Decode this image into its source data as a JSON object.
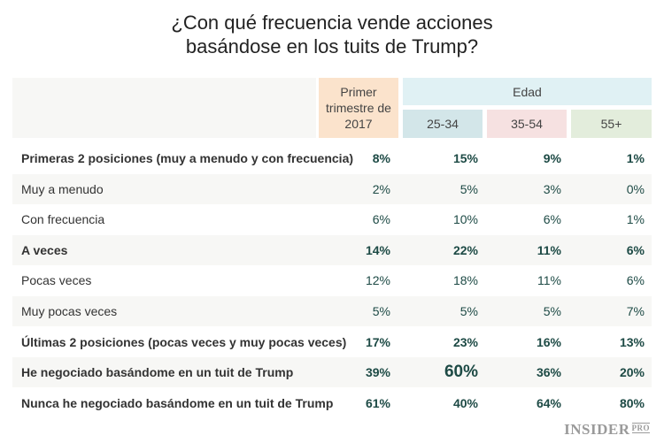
{
  "chart_data": {
    "type": "table",
    "title_line1": "¿Con qué frecuencia vende acciones",
    "title_line2": "basándose en los tuits de Trump?",
    "columns": {
      "total": "Primer trimestre de 2017",
      "group": "Edad",
      "ages": [
        "25-34",
        "35-54",
        "55+"
      ]
    },
    "colors": {
      "total": "#fbe3cc",
      "group": "#e0f1f4",
      "ages": [
        "#d3e6e9",
        "#f6e1e1",
        "#e3eddc"
      ],
      "value": "#1d4a45"
    },
    "rows": [
      {
        "label": "Primeras 2 posiciones (muy a menudo y con frecuencia)",
        "bold": true,
        "values": [
          "8%",
          "15%",
          "9%",
          "1%"
        ]
      },
      {
        "label": "Muy a menudo",
        "bold": false,
        "values": [
          "2%",
          "5%",
          "3%",
          "0%"
        ]
      },
      {
        "label": "Con frecuencia",
        "bold": false,
        "values": [
          "6%",
          "10%",
          "6%",
          "1%"
        ]
      },
      {
        "label": "A veces",
        "bold": true,
        "values": [
          "14%",
          "22%",
          "11%",
          "6%"
        ]
      },
      {
        "label": "Pocas veces",
        "bold": false,
        "values": [
          "12%",
          "18%",
          "11%",
          "6%"
        ]
      },
      {
        "label": "Muy pocas veces",
        "bold": false,
        "values": [
          "5%",
          "5%",
          "5%",
          "7%"
        ]
      },
      {
        "label": "Últimas 2 posiciones (pocas veces y muy pocas veces)",
        "bold": true,
        "values": [
          "17%",
          "23%",
          "16%",
          "13%"
        ]
      },
      {
        "label": "He negociado basándome en un tuit de Trump",
        "bold": true,
        "values": [
          "39%",
          "60%",
          "36%",
          "20%"
        ],
        "highlight": 1
      },
      {
        "label": "Nunca he negociado basándome en un tuit de Trump",
        "bold": true,
        "values": [
          "61%",
          "40%",
          "64%",
          "80%"
        ]
      }
    ]
  },
  "logo": {
    "main": "INSIDER",
    "sup": "PRO"
  }
}
